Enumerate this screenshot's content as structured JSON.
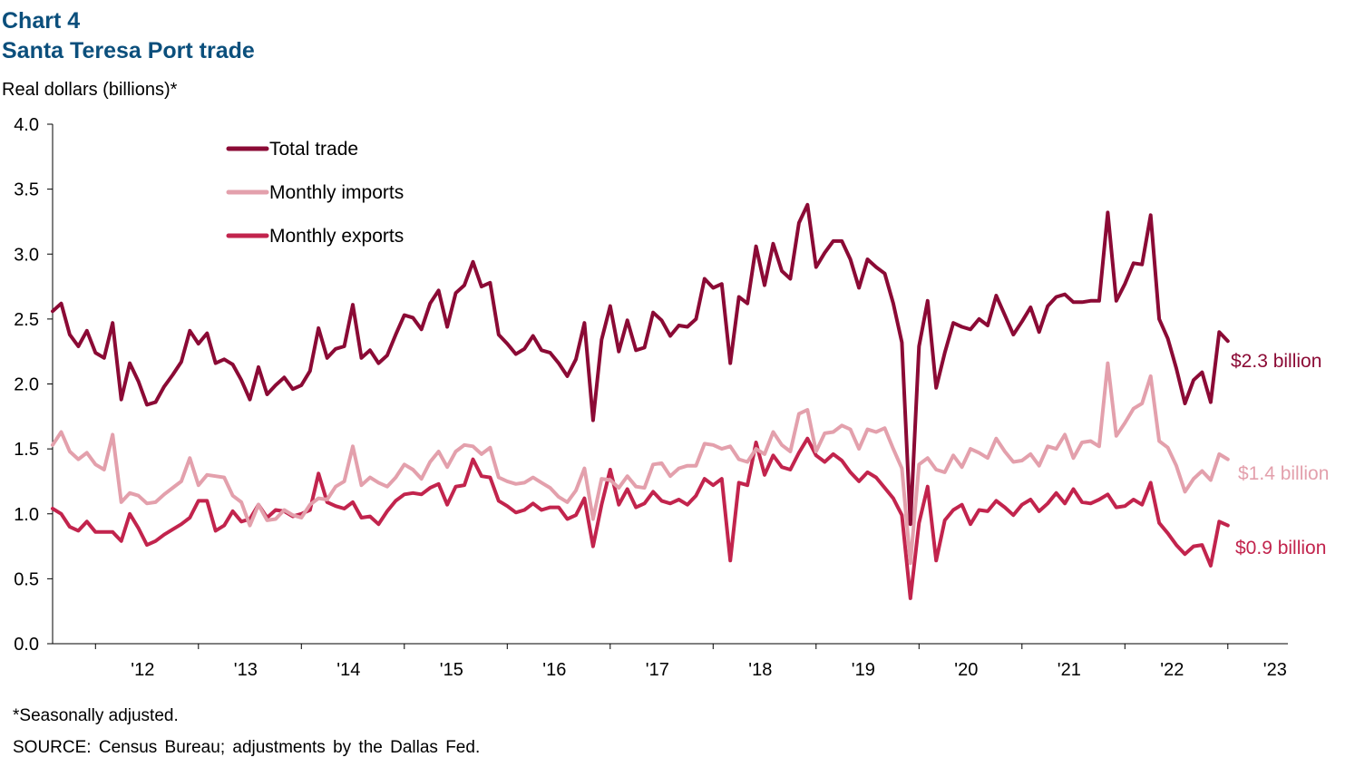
{
  "header": {
    "chart_number": "Chart 4",
    "title": "Santa Teresa Port trade",
    "unit_label": "Real dollars (billions)*"
  },
  "footer": {
    "footnote": "*Seasonally adjusted.",
    "source": "SOURCE: Census Bureau; adjustments by the Dallas Fed."
  },
  "colors": {
    "total": "#8b0a35",
    "imports": "#e3a0ac",
    "exports": "#c2244d",
    "title": "#0b4f7c"
  },
  "chart_data": {
    "type": "line",
    "ylim": [
      0,
      4
    ],
    "yticks": [
      "0.0",
      "0.5",
      "1.0",
      "1.5",
      "2.0",
      "2.5",
      "3.0",
      "3.5",
      "4.0"
    ],
    "x_start": "2011-08",
    "x_end": "2023-08",
    "year_labels": [
      "'12",
      "'13",
      "'14",
      "'15",
      "'16",
      "'17",
      "'18",
      "'19",
      "'20",
      "'21",
      "'22",
      "'23"
    ],
    "legend_position": "top-left",
    "series": [
      {
        "name": "Total trade",
        "key": "total",
        "end_label": "$2.3 billion",
        "values": [
          2.56,
          2.62,
          2.38,
          2.29,
          2.41,
          2.24,
          2.2,
          2.47,
          1.88,
          2.16,
          2.02,
          1.84,
          1.86,
          1.98,
          2.07,
          2.17,
          2.41,
          2.31,
          2.39,
          2.16,
          2.19,
          2.15,
          2.03,
          1.88,
          2.13,
          1.92,
          1.99,
          2.05,
          1.96,
          1.99,
          2.1,
          2.43,
          2.2,
          2.27,
          2.29,
          2.61,
          2.2,
          2.26,
          2.16,
          2.22,
          2.38,
          2.53,
          2.51,
          2.42,
          2.62,
          2.72,
          2.44,
          2.7,
          2.76,
          2.94,
          2.75,
          2.78,
          2.38,
          2.31,
          2.23,
          2.27,
          2.37,
          2.26,
          2.24,
          2.16,
          2.06,
          2.19,
          2.47,
          1.72,
          2.34,
          2.6,
          2.25,
          2.49,
          2.26,
          2.28,
          2.55,
          2.49,
          2.37,
          2.45,
          2.44,
          2.5,
          2.81,
          2.74,
          2.77,
          2.16,
          2.67,
          2.62,
          3.06,
          2.76,
          3.08,
          2.87,
          2.81,
          3.24,
          3.38,
          2.9,
          3.01,
          3.1,
          3.1,
          2.96,
          2.74,
          2.96,
          2.9,
          2.85,
          2.62,
          2.32,
          0.92,
          2.29,
          2.64,
          1.97,
          2.24,
          2.47,
          2.44,
          2.42,
          2.5,
          2.45,
          2.68,
          2.53,
          2.38,
          2.48,
          2.59,
          2.4,
          2.6,
          2.67,
          2.69,
          2.63,
          2.63,
          2.64,
          2.64,
          3.32,
          2.64,
          2.77,
          2.93,
          2.92,
          3.3,
          2.5,
          2.35,
          2.12,
          1.85,
          2.03,
          2.09,
          1.86,
          2.4,
          2.33
        ]
      },
      {
        "name": "Monthly imports",
        "key": "imports",
        "end_label": "$1.4 billion",
        "values": [
          1.53,
          1.63,
          1.48,
          1.42,
          1.47,
          1.38,
          1.34,
          1.61,
          1.09,
          1.16,
          1.14,
          1.08,
          1.09,
          1.15,
          1.2,
          1.25,
          1.43,
          1.22,
          1.3,
          1.29,
          1.28,
          1.14,
          1.09,
          0.91,
          1.07,
          0.95,
          0.96,
          1.03,
          0.99,
          0.97,
          1.07,
          1.12,
          1.11,
          1.21,
          1.25,
          1.52,
          1.22,
          1.28,
          1.24,
          1.21,
          1.28,
          1.38,
          1.34,
          1.27,
          1.4,
          1.48,
          1.36,
          1.48,
          1.53,
          1.52,
          1.46,
          1.51,
          1.28,
          1.25,
          1.23,
          1.24,
          1.28,
          1.24,
          1.2,
          1.13,
          1.09,
          1.18,
          1.35,
          0.96,
          1.27,
          1.26,
          1.2,
          1.29,
          1.21,
          1.2,
          1.38,
          1.39,
          1.29,
          1.35,
          1.37,
          1.37,
          1.54,
          1.53,
          1.5,
          1.52,
          1.42,
          1.4,
          1.5,
          1.46,
          1.63,
          1.53,
          1.48,
          1.77,
          1.8,
          1.48,
          1.62,
          1.63,
          1.68,
          1.65,
          1.5,
          1.65,
          1.63,
          1.66,
          1.5,
          1.35,
          0.62,
          1.38,
          1.43,
          1.34,
          1.32,
          1.45,
          1.36,
          1.5,
          1.47,
          1.43,
          1.58,
          1.48,
          1.4,
          1.41,
          1.46,
          1.37,
          1.52,
          1.5,
          1.61,
          1.43,
          1.55,
          1.56,
          1.52,
          2.16,
          1.6,
          1.7,
          1.81,
          1.85,
          2.06,
          1.56,
          1.51,
          1.37,
          1.17,
          1.27,
          1.33,
          1.26,
          1.46,
          1.42
        ]
      },
      {
        "name": "Monthly exports",
        "key": "exports",
        "end_label": "$0.9 billion",
        "values": [
          1.04,
          1.0,
          0.9,
          0.87,
          0.94,
          0.86,
          0.86,
          0.86,
          0.79,
          1.0,
          0.89,
          0.76,
          0.79,
          0.84,
          0.88,
          0.92,
          0.97,
          1.1,
          1.1,
          0.87,
          0.91,
          1.02,
          0.94,
          0.96,
          1.07,
          0.97,
          1.03,
          1.02,
          0.98,
          1.0,
          1.03,
          1.31,
          1.09,
          1.06,
          1.04,
          1.09,
          0.97,
          0.98,
          0.92,
          1.02,
          1.1,
          1.15,
          1.16,
          1.15,
          1.2,
          1.23,
          1.07,
          1.21,
          1.22,
          1.42,
          1.29,
          1.28,
          1.1,
          1.06,
          1.01,
          1.03,
          1.08,
          1.03,
          1.05,
          1.05,
          0.96,
          0.99,
          1.12,
          0.75,
          1.07,
          1.34,
          1.07,
          1.19,
          1.05,
          1.08,
          1.17,
          1.1,
          1.08,
          1.11,
          1.07,
          1.14,
          1.27,
          1.22,
          1.27,
          0.64,
          1.24,
          1.22,
          1.55,
          1.3,
          1.45,
          1.36,
          1.34,
          1.47,
          1.58,
          1.45,
          1.4,
          1.46,
          1.41,
          1.32,
          1.25,
          1.32,
          1.28,
          1.2,
          1.12,
          0.99,
          0.35,
          0.93,
          1.21,
          0.64,
          0.95,
          1.03,
          1.07,
          0.92,
          1.03,
          1.02,
          1.1,
          1.05,
          0.99,
          1.07,
          1.11,
          1.02,
          1.08,
          1.16,
          1.08,
          1.19,
          1.09,
          1.08,
          1.11,
          1.15,
          1.05,
          1.06,
          1.11,
          1.07,
          1.24,
          0.93,
          0.85,
          0.76,
          0.69,
          0.75,
          0.76,
          0.6,
          0.94,
          0.91
        ]
      }
    ]
  }
}
